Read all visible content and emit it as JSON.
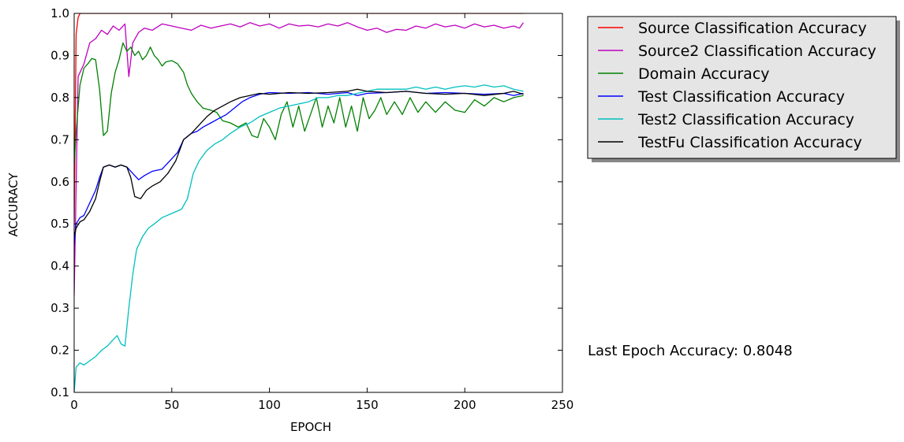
{
  "chart_data": {
    "type": "line",
    "title": "",
    "xlabel": "EPOCH",
    "ylabel": "ACCURACY",
    "xlim": [
      0,
      250
    ],
    "ylim": [
      0.1,
      1.0
    ],
    "xticks": [
      0,
      50,
      100,
      150,
      200,
      250
    ],
    "yticks": [
      0.1,
      0.2,
      0.3,
      0.4,
      0.5,
      0.6,
      0.7,
      0.8,
      0.9,
      1.0
    ],
    "grid": false,
    "legend_position": "outside-top-right",
    "annotation": "Last Epoch Accuracy: 0.8048",
    "series": [
      {
        "name": "Source Classification Accuracy",
        "color": "#ff0000",
        "points": [
          [
            0,
            0.5
          ],
          [
            1,
            0.95
          ],
          [
            2,
            0.99
          ],
          [
            3,
            1.0
          ],
          [
            230,
            1.0
          ]
        ]
      },
      {
        "name": "Source2 Classification Accuracy",
        "color": "#bf00bf",
        "points": [
          [
            0,
            0.33
          ],
          [
            2,
            0.85
          ],
          [
            5,
            0.88
          ],
          [
            8,
            0.93
          ],
          [
            11,
            0.94
          ],
          [
            14,
            0.96
          ],
          [
            17,
            0.95
          ],
          [
            20,
            0.97
          ],
          [
            23,
            0.96
          ],
          [
            26,
            0.975
          ],
          [
            28,
            0.85
          ],
          [
            30,
            0.93
          ],
          [
            33,
            0.955
          ],
          [
            36,
            0.965
          ],
          [
            40,
            0.96
          ],
          [
            45,
            0.975
          ],
          [
            50,
            0.97
          ],
          [
            55,
            0.965
          ],
          [
            60,
            0.96
          ],
          [
            65,
            0.972
          ],
          [
            70,
            0.965
          ],
          [
            75,
            0.97
          ],
          [
            80,
            0.975
          ],
          [
            85,
            0.968
          ],
          [
            90,
            0.978
          ],
          [
            95,
            0.97
          ],
          [
            100,
            0.975
          ],
          [
            105,
            0.965
          ],
          [
            110,
            0.975
          ],
          [
            115,
            0.97
          ],
          [
            120,
            0.972
          ],
          [
            125,
            0.968
          ],
          [
            130,
            0.975
          ],
          [
            135,
            0.97
          ],
          [
            140,
            0.978
          ],
          [
            145,
            0.968
          ],
          [
            150,
            0.96
          ],
          [
            155,
            0.965
          ],
          [
            160,
            0.955
          ],
          [
            165,
            0.962
          ],
          [
            170,
            0.96
          ],
          [
            175,
            0.97
          ],
          [
            180,
            0.965
          ],
          [
            185,
            0.975
          ],
          [
            190,
            0.968
          ],
          [
            195,
            0.972
          ],
          [
            200,
            0.965
          ],
          [
            205,
            0.975
          ],
          [
            210,
            0.968
          ],
          [
            215,
            0.972
          ],
          [
            220,
            0.965
          ],
          [
            225,
            0.97
          ],
          [
            228,
            0.965
          ],
          [
            230,
            0.978
          ]
        ]
      },
      {
        "name": "Domain Accuracy",
        "color": "#008000",
        "points": [
          [
            0,
            0.64
          ],
          [
            1,
            0.72
          ],
          [
            3,
            0.83
          ],
          [
            5,
            0.87
          ],
          [
            7,
            0.88
          ],
          [
            9,
            0.893
          ],
          [
            11,
            0.89
          ],
          [
            13,
            0.82
          ],
          [
            15,
            0.71
          ],
          [
            17,
            0.72
          ],
          [
            19,
            0.81
          ],
          [
            21,
            0.86
          ],
          [
            23,
            0.89
          ],
          [
            25,
            0.93
          ],
          [
            27,
            0.91
          ],
          [
            29,
            0.92
          ],
          [
            31,
            0.9
          ],
          [
            33,
            0.91
          ],
          [
            35,
            0.89
          ],
          [
            37,
            0.9
          ],
          [
            39,
            0.92
          ],
          [
            41,
            0.9
          ],
          [
            43,
            0.89
          ],
          [
            45,
            0.875
          ],
          [
            47,
            0.885
          ],
          [
            50,
            0.888
          ],
          [
            53,
            0.88
          ],
          [
            56,
            0.86
          ],
          [
            58,
            0.83
          ],
          [
            60,
            0.81
          ],
          [
            63,
            0.79
          ],
          [
            66,
            0.775
          ],
          [
            70,
            0.77
          ],
          [
            73,
            0.765
          ],
          [
            76,
            0.745
          ],
          [
            80,
            0.74
          ],
          [
            84,
            0.73
          ],
          [
            88,
            0.74
          ],
          [
            91,
            0.71
          ],
          [
            94,
            0.705
          ],
          [
            97,
            0.75
          ],
          [
            100,
            0.73
          ],
          [
            103,
            0.7
          ],
          [
            106,
            0.76
          ],
          [
            109,
            0.79
          ],
          [
            112,
            0.73
          ],
          [
            115,
            0.78
          ],
          [
            118,
            0.72
          ],
          [
            121,
            0.76
          ],
          [
            124,
            0.8
          ],
          [
            127,
            0.73
          ],
          [
            130,
            0.78
          ],
          [
            133,
            0.74
          ],
          [
            136,
            0.8
          ],
          [
            139,
            0.73
          ],
          [
            142,
            0.78
          ],
          [
            145,
            0.72
          ],
          [
            148,
            0.8
          ],
          [
            151,
            0.75
          ],
          [
            154,
            0.77
          ],
          [
            157,
            0.8
          ],
          [
            160,
            0.76
          ],
          [
            164,
            0.79
          ],
          [
            168,
            0.76
          ],
          [
            172,
            0.8
          ],
          [
            176,
            0.765
          ],
          [
            180,
            0.79
          ],
          [
            185,
            0.765
          ],
          [
            190,
            0.79
          ],
          [
            195,
            0.77
          ],
          [
            200,
            0.765
          ],
          [
            205,
            0.795
          ],
          [
            210,
            0.78
          ],
          [
            215,
            0.8
          ],
          [
            220,
            0.79
          ],
          [
            225,
            0.8
          ],
          [
            230,
            0.805
          ]
        ]
      },
      {
        "name": "Test Classification Accuracy",
        "color": "#0000ff",
        "points": [
          [
            0,
            0.45
          ],
          [
            1,
            0.5
          ],
          [
            3,
            0.515
          ],
          [
            5,
            0.52
          ],
          [
            8,
            0.55
          ],
          [
            11,
            0.58
          ],
          [
            13,
            0.61
          ],
          [
            15,
            0.635
          ],
          [
            18,
            0.64
          ],
          [
            21,
            0.635
          ],
          [
            24,
            0.64
          ],
          [
            27,
            0.635
          ],
          [
            30,
            0.62
          ],
          [
            33,
            0.605
          ],
          [
            36,
            0.615
          ],
          [
            40,
            0.625
          ],
          [
            45,
            0.63
          ],
          [
            50,
            0.655
          ],
          [
            53,
            0.67
          ],
          [
            56,
            0.7
          ],
          [
            60,
            0.715
          ],
          [
            63,
            0.72
          ],
          [
            66,
            0.73
          ],
          [
            70,
            0.74
          ],
          [
            74,
            0.75
          ],
          [
            78,
            0.76
          ],
          [
            82,
            0.775
          ],
          [
            86,
            0.79
          ],
          [
            90,
            0.8
          ],
          [
            95,
            0.808
          ],
          [
            100,
            0.812
          ],
          [
            110,
            0.81
          ],
          [
            120,
            0.812
          ],
          [
            130,
            0.808
          ],
          [
            140,
            0.812
          ],
          [
            145,
            0.805
          ],
          [
            150,
            0.81
          ],
          [
            160,
            0.812
          ],
          [
            170,
            0.815
          ],
          [
            180,
            0.81
          ],
          [
            190,
            0.812
          ],
          [
            200,
            0.81
          ],
          [
            210,
            0.808
          ],
          [
            220,
            0.81
          ],
          [
            225,
            0.805
          ],
          [
            230,
            0.81
          ]
        ]
      },
      {
        "name": "Test2 Classification Accuracy",
        "color": "#00bfbf",
        "points": [
          [
            0,
            0.1
          ],
          [
            1,
            0.16
          ],
          [
            3,
            0.17
          ],
          [
            5,
            0.165
          ],
          [
            8,
            0.175
          ],
          [
            11,
            0.185
          ],
          [
            14,
            0.2
          ],
          [
            17,
            0.21
          ],
          [
            20,
            0.225
          ],
          [
            22,
            0.235
          ],
          [
            24,
            0.215
          ],
          [
            26,
            0.21
          ],
          [
            28,
            0.3
          ],
          [
            30,
            0.38
          ],
          [
            32,
            0.44
          ],
          [
            35,
            0.47
          ],
          [
            38,
            0.49
          ],
          [
            41,
            0.5
          ],
          [
            45,
            0.515
          ],
          [
            50,
            0.525
          ],
          [
            55,
            0.535
          ],
          [
            58,
            0.56
          ],
          [
            61,
            0.62
          ],
          [
            64,
            0.65
          ],
          [
            68,
            0.675
          ],
          [
            72,
            0.69
          ],
          [
            76,
            0.7
          ],
          [
            80,
            0.715
          ],
          [
            85,
            0.73
          ],
          [
            90,
            0.74
          ],
          [
            95,
            0.755
          ],
          [
            100,
            0.765
          ],
          [
            105,
            0.775
          ],
          [
            110,
            0.78
          ],
          [
            115,
            0.785
          ],
          [
            120,
            0.79
          ],
          [
            125,
            0.8
          ],
          [
            130,
            0.8
          ],
          [
            135,
            0.805
          ],
          [
            140,
            0.805
          ],
          [
            145,
            0.81
          ],
          [
            150,
            0.815
          ],
          [
            155,
            0.82
          ],
          [
            160,
            0.82
          ],
          [
            165,
            0.82
          ],
          [
            170,
            0.82
          ],
          [
            175,
            0.825
          ],
          [
            180,
            0.82
          ],
          [
            185,
            0.825
          ],
          [
            190,
            0.82
          ],
          [
            195,
            0.825
          ],
          [
            200,
            0.828
          ],
          [
            205,
            0.825
          ],
          [
            210,
            0.83
          ],
          [
            215,
            0.825
          ],
          [
            220,
            0.828
          ],
          [
            225,
            0.82
          ],
          [
            230,
            0.815
          ]
        ]
      },
      {
        "name": "TestFu Classification Accuracy",
        "color": "#000000",
        "points": [
          [
            0,
            0.47
          ],
          [
            1,
            0.49
          ],
          [
            3,
            0.505
          ],
          [
            5,
            0.51
          ],
          [
            8,
            0.53
          ],
          [
            11,
            0.56
          ],
          [
            13,
            0.6
          ],
          [
            15,
            0.635
          ],
          [
            18,
            0.64
          ],
          [
            21,
            0.635
          ],
          [
            24,
            0.64
          ],
          [
            27,
            0.635
          ],
          [
            29,
            0.61
          ],
          [
            31,
            0.565
          ],
          [
            34,
            0.56
          ],
          [
            37,
            0.58
          ],
          [
            40,
            0.59
          ],
          [
            44,
            0.6
          ],
          [
            48,
            0.62
          ],
          [
            52,
            0.65
          ],
          [
            56,
            0.7
          ],
          [
            60,
            0.715
          ],
          [
            64,
            0.735
          ],
          [
            68,
            0.755
          ],
          [
            72,
            0.77
          ],
          [
            76,
            0.78
          ],
          [
            80,
            0.79
          ],
          [
            85,
            0.8
          ],
          [
            90,
            0.805
          ],
          [
            95,
            0.81
          ],
          [
            100,
            0.808
          ],
          [
            110,
            0.812
          ],
          [
            120,
            0.81
          ],
          [
            130,
            0.812
          ],
          [
            140,
            0.815
          ],
          [
            145,
            0.82
          ],
          [
            150,
            0.815
          ],
          [
            160,
            0.812
          ],
          [
            170,
            0.815
          ],
          [
            180,
            0.81
          ],
          [
            190,
            0.808
          ],
          [
            200,
            0.81
          ],
          [
            210,
            0.805
          ],
          [
            220,
            0.81
          ],
          [
            225,
            0.815
          ],
          [
            230,
            0.808
          ]
        ]
      }
    ]
  }
}
